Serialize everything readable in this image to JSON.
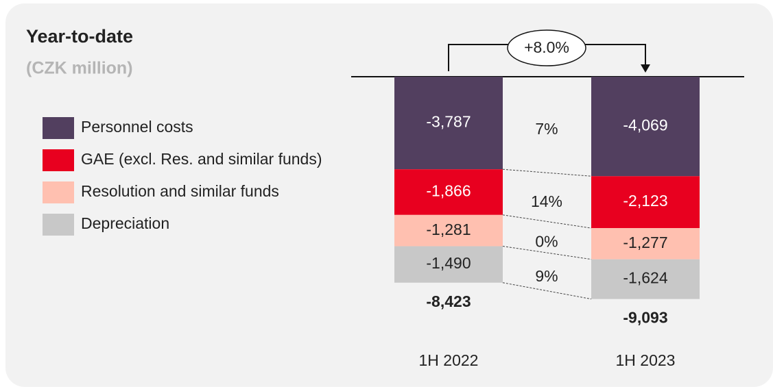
{
  "chart_data": {
    "type": "stacked_bar",
    "title": "Year-to-date",
    "subtitle": "(CZK million)",
    "categories": [
      "1H 2022",
      "1H 2023"
    ],
    "series": [
      {
        "name": "Personnel costs",
        "color": "#523f5f",
        "label_color": "#ffffff",
        "values": [
          -3787,
          -4069
        ],
        "value_labels": [
          "-3,787",
          "-4,069"
        ]
      },
      {
        "name": "GAE (excl. Res. and similar funds)",
        "color": "#e8001f",
        "label_color": "#ffffff",
        "values": [
          -1866,
          -2123
        ],
        "value_labels": [
          "-1,866",
          "-2,123"
        ]
      },
      {
        "name": "Resolution and similar funds",
        "color": "#ffc0b0",
        "label_color": "#222222",
        "values": [
          -1281,
          -1277
        ],
        "value_labels": [
          "-1,281",
          "-1,277"
        ]
      },
      {
        "name": "Depreciation",
        "color": "#c8c8c8",
        "label_color": "#222222",
        "values": [
          -1490,
          -1624
        ],
        "value_labels": [
          "-1,490",
          "-1,624"
        ]
      }
    ],
    "totals": {
      "values": [
        -8423,
        -9093
      ],
      "value_labels": [
        "-8,423",
        "-9,093"
      ]
    },
    "changes": {
      "values": [
        7,
        14,
        0,
        9
      ],
      "value_labels": [
        "7%",
        "14%",
        "0%",
        "9%"
      ]
    },
    "total_change": {
      "value": 8.0,
      "label": "+8.0%"
    },
    "ylim": [
      -10000,
      0
    ]
  }
}
